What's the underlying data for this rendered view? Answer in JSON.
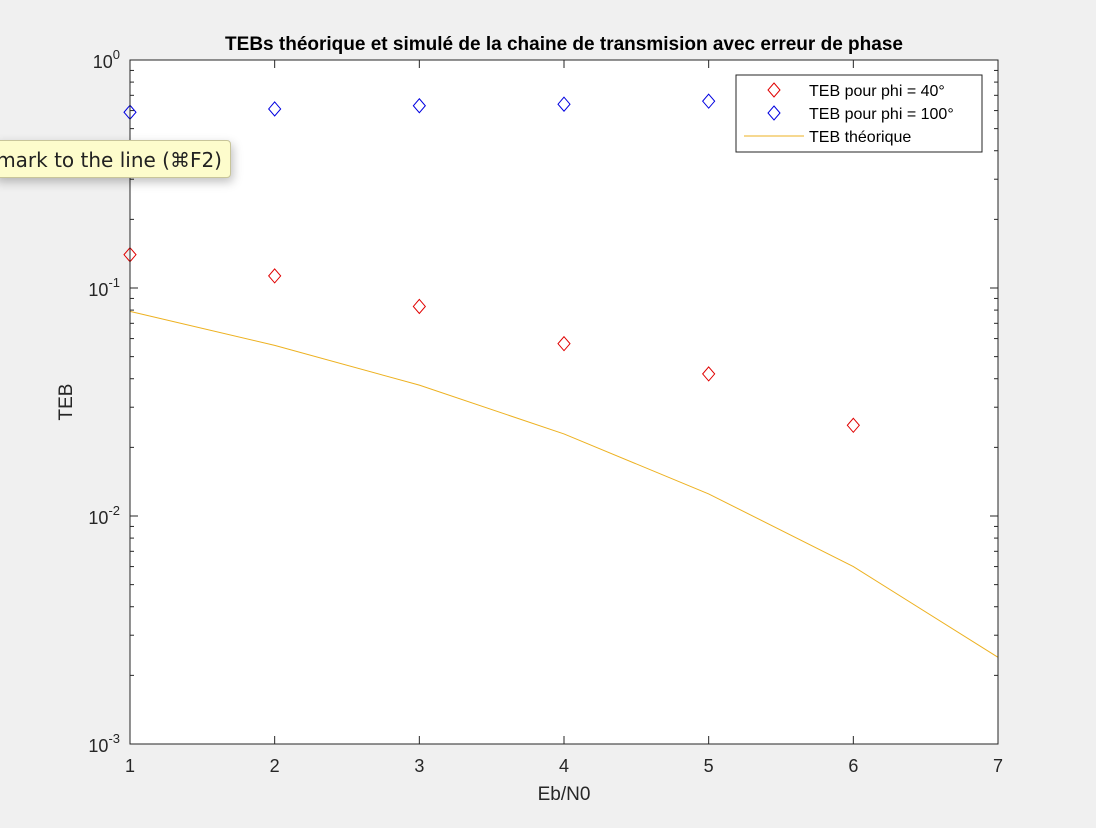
{
  "chart_data": {
    "type": "scatter",
    "title": "TEBs théorique et simulé de la chaine de transmision avec erreur de phase",
    "xlabel": "Eb/N0",
    "ylabel": "TEB",
    "xlim": [
      1,
      7
    ],
    "ylim": [
      0.001,
      1
    ],
    "yscale": "log",
    "x_ticks": [
      "1",
      "2",
      "3",
      "4",
      "5",
      "6",
      "7"
    ],
    "y_ticks": [
      {
        "base": "10",
        "exp": "0",
        "value": 1
      },
      {
        "base": "10",
        "exp": "-1",
        "value": 0.1
      },
      {
        "base": "10",
        "exp": "-2",
        "value": 0.01
      },
      {
        "base": "10",
        "exp": "-3",
        "value": 0.001
      }
    ],
    "grid": false,
    "legend_position": "top-right",
    "series": [
      {
        "name": "TEB pour phi = 40°",
        "style": "diamond-marker",
        "color": "#e00000",
        "x": [
          1,
          2,
          3,
          4,
          5,
          6
        ],
        "y": [
          0.14,
          0.113,
          0.083,
          0.057,
          0.042,
          0.025
        ]
      },
      {
        "name": "TEB pour phi = 100°",
        "style": "diamond-marker",
        "color": "#0000e0",
        "x": [
          1,
          2,
          3,
          4,
          5
        ],
        "y": [
          0.59,
          0.61,
          0.63,
          0.64,
          0.66
        ]
      },
      {
        "name": "TEB théorique",
        "style": "line",
        "color": "#edb120",
        "x": [
          1,
          2,
          3,
          4,
          5,
          6,
          7
        ],
        "y": [
          0.079,
          0.056,
          0.0375,
          0.0229,
          0.0125,
          0.006,
          0.0024
        ]
      }
    ]
  },
  "tooltip": {
    "text": "mark to the line (⌘F2)"
  }
}
